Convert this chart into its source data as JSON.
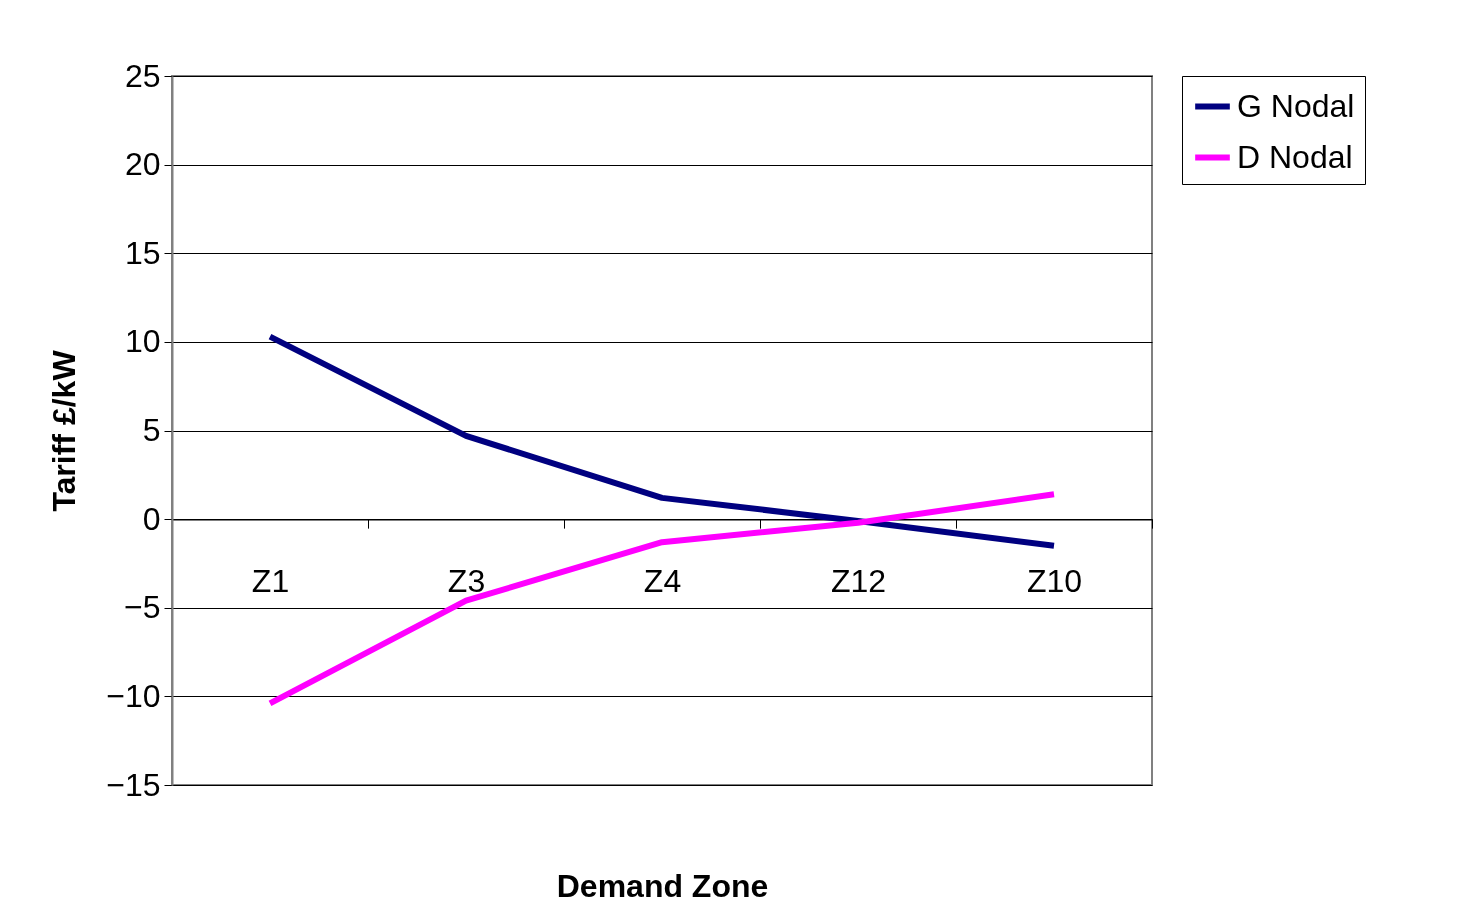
{
  "chart_data": {
    "type": "line",
    "xlabel": "Demand Zone",
    "ylabel": "Tariff £/kW",
    "categories": [
      "Z1",
      "Z3",
      "Z4",
      "Z12",
      "Z10"
    ],
    "series": [
      {
        "name": "G Nodal",
        "color": "#000080",
        "values": [
          10.3,
          4.7,
          1.2,
          -0.1,
          -1.5
        ]
      },
      {
        "name": "D Nodal",
        "color": "#ff00ff",
        "values": [
          -10.4,
          -4.6,
          -1.3,
          -0.2,
          1.4
        ]
      }
    ],
    "ylim": [
      -15,
      25
    ],
    "yticks": [
      -15,
      -10,
      -5,
      0,
      5,
      10,
      15,
      20,
      25
    ],
    "grid": "y",
    "legend": "right",
    "marker": "none",
    "line_style": "solid"
  }
}
